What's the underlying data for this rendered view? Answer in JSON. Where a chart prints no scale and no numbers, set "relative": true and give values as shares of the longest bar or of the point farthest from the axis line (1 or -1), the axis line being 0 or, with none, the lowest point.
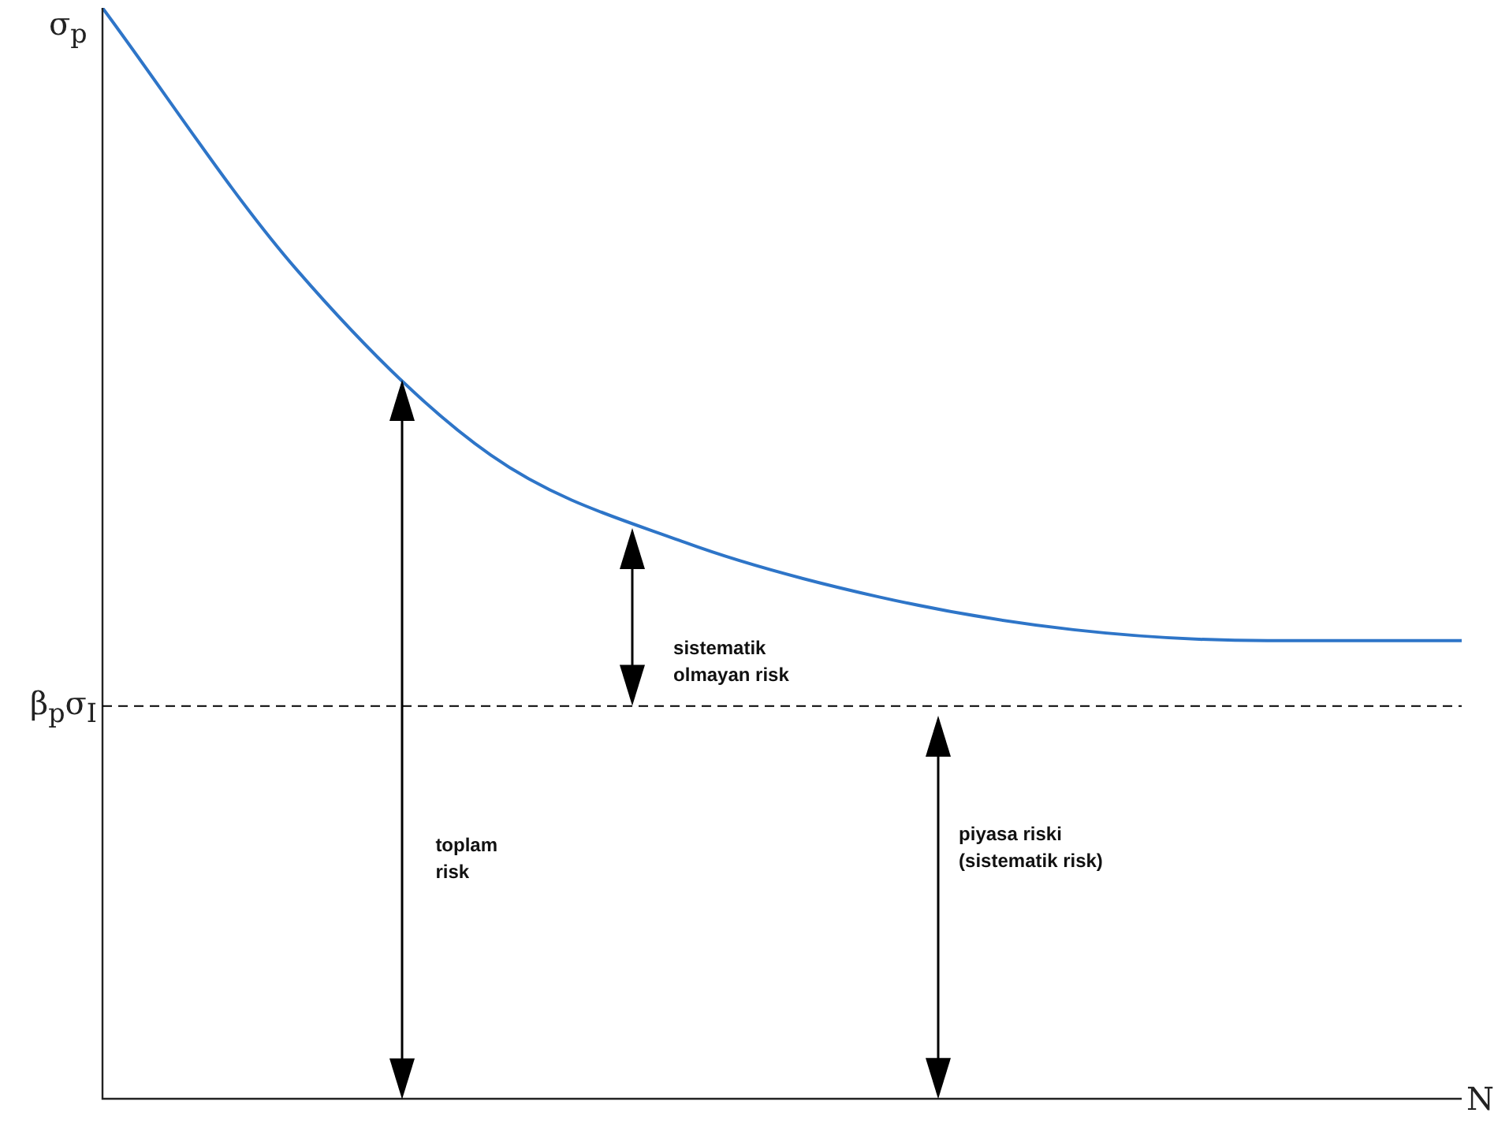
{
  "chart_data": {
    "type": "line",
    "relative": true,
    "ylabel": "σ$_{p}$",
    "xlabel": "N",
    "categories": [
      null,
      null,
      null,
      null,
      null,
      null,
      null,
      null
    ],
    "series": [
      {
        "color": "#2e75c8",
        "values": [
          1.0,
          0.76,
          0.59,
          0.51,
          0.46,
          0.43,
          0.42,
          0.42
        ]
      }
    ],
    "ref_lines": [
      {
        "axis": "y",
        "value": 0.36,
        "label": "β$_{p}$σ$_{I}$",
        "color": "#000000",
        "line_style": "dashed"
      }
    ],
    "annotations": [
      "toplam risk",
      "sistematik olmayan risk",
      "piyasa riski (sistematik risk)"
    ],
    "marker": "none",
    "line_style": "solid",
    "legend": false
  }
}
